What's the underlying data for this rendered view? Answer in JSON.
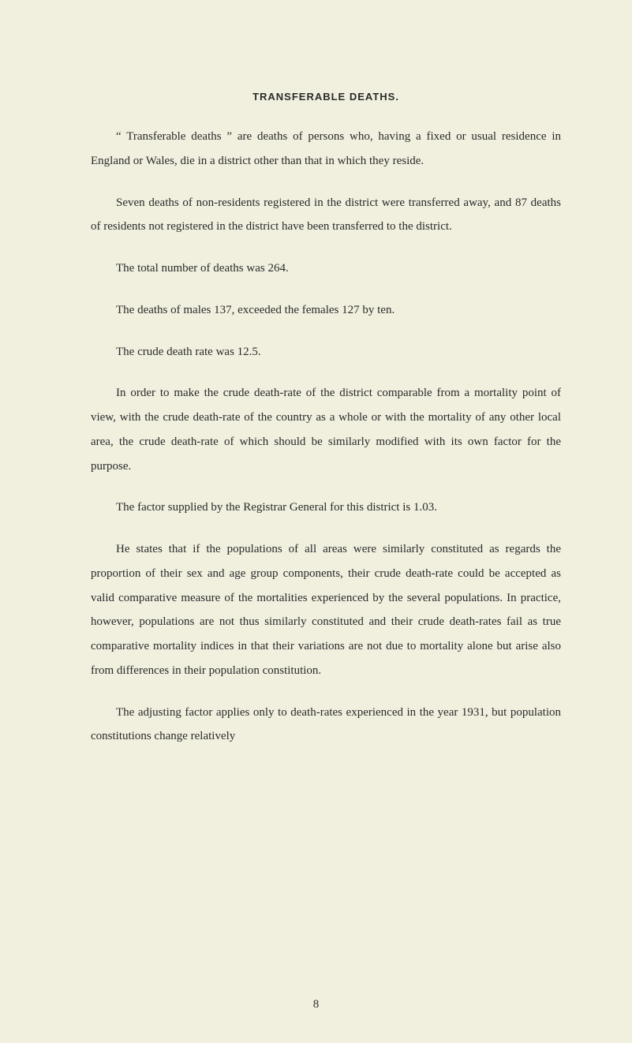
{
  "title": "TRANSFERABLE DEATHS.",
  "paragraphs": [
    "“ Transferable deaths ” are deaths of persons who, having a fixed or usual residence in England or Wales, die in a district other than that in which they reside.",
    "Seven deaths of non-residents registered in the district were transferred away, and 87 deaths of residents not registered in the district have been transferred to the district.",
    "The total number of deaths was 264.",
    "The deaths of males 137, exceeded the females 127 by ten.",
    "The crude death rate was 12.5.",
    "In order to make the crude death-rate of the district comparable from a mortality point of view, with the crude death-rate of the country as a whole or with the mortality of any other local area, the crude death-rate of which should be similarly modified with its own factor for the purpose.",
    "The factor supplied by the Registrar General for this district is 1.03.",
    "He states that if the populations of all areas were similarly constituted as regards the proportion of their sex and age group components, their crude death-rate could be accepted as valid comparative measure of the mortalities experienced by the several populations. In practice, however, populations are not thus similarly constituted and their crude death-rates fail as true comparative mortality indices in that their variations are not due to mortality alone but arise also from differences in their population constitution.",
    "The adjusting factor applies only to death-rates experienced in the year 1931, but population constitutions change relatively"
  ],
  "page_number": "8"
}
